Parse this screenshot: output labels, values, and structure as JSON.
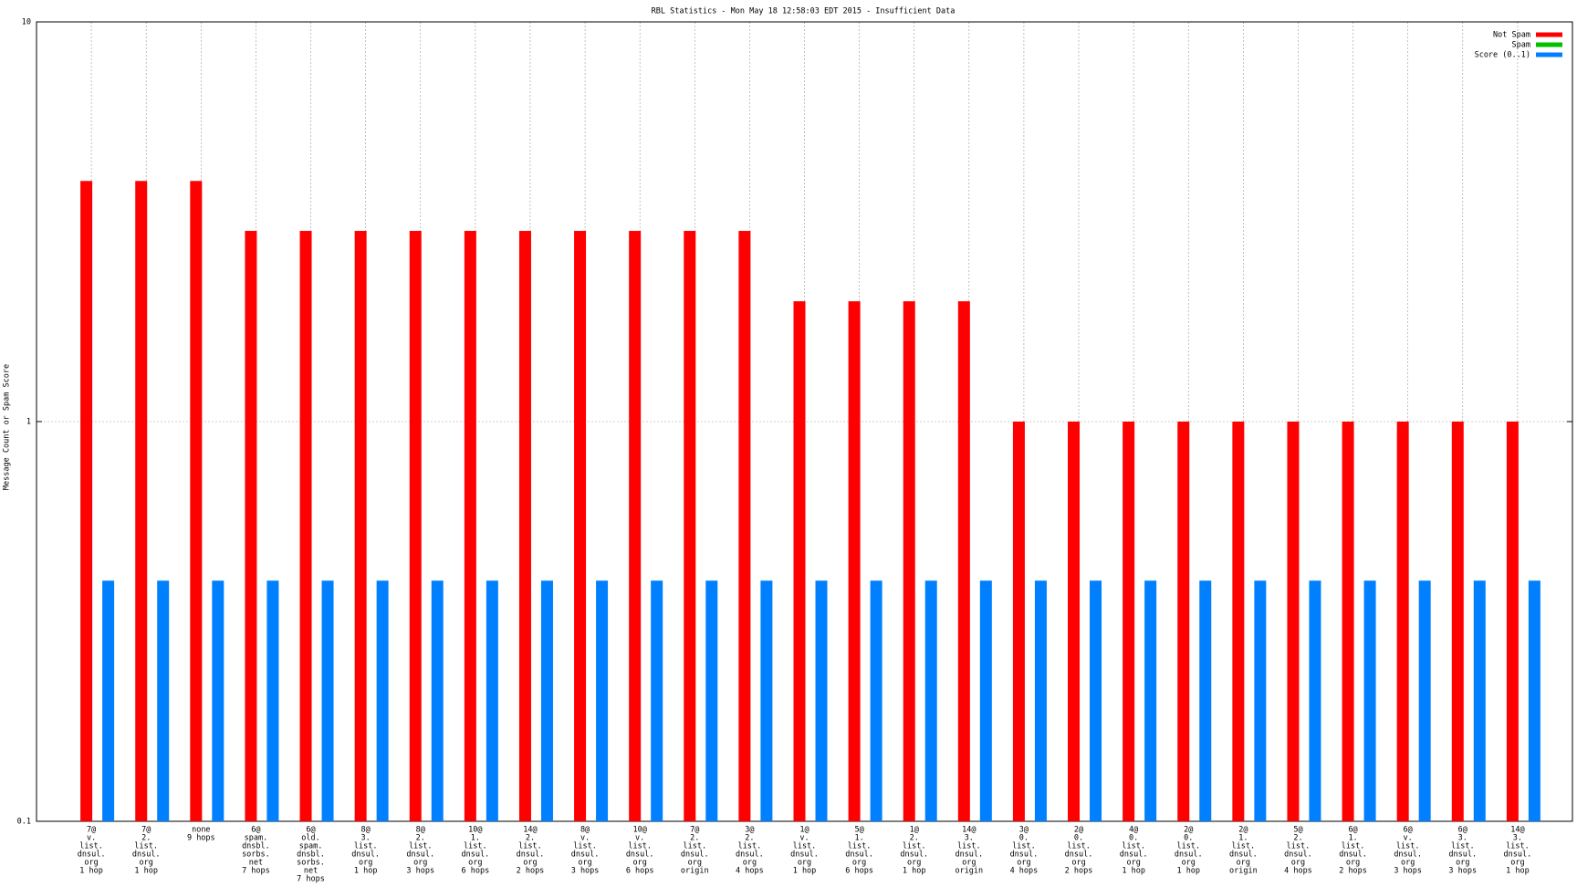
{
  "chart_data": {
    "type": "bar",
    "title": "RBL Statistics - Mon May 18 12:58:03 EDT 2015 - Insufficient Data",
    "y_label": "Message Count or Spam Score",
    "log_scale": true,
    "grid": true,
    "legend": "top-right",
    "ylim": [
      0.1,
      10
    ],
    "yticks": [
      0.1,
      1,
      10
    ],
    "categories": [
      [
        "7@",
        "v.",
        "list.",
        "dnsul.",
        "org",
        "1 hop"
      ],
      [
        "7@",
        "2.",
        "list.",
        "dnsul.",
        "org",
        "1 hop"
      ],
      [
        "none",
        "9 hops"
      ],
      [
        "6@",
        "spam.",
        "dnsbl.",
        "sorbs.",
        "net",
        "7 hops"
      ],
      [
        "6@",
        "old.",
        "spam.",
        "dnsbl.",
        "sorbs.",
        "net",
        "7 hops"
      ],
      [
        "8@",
        "3.",
        "list.",
        "dnsul.",
        "org",
        "1 hop"
      ],
      [
        "8@",
        "2.",
        "list.",
        "dnsul.",
        "org",
        "3 hops"
      ],
      [
        "10@",
        "1.",
        "list.",
        "dnsul.",
        "org",
        "6 hops"
      ],
      [
        "14@",
        "2.",
        "list.",
        "dnsul.",
        "org",
        "2 hops"
      ],
      [
        "8@",
        "v.",
        "list.",
        "dnsul.",
        "org",
        "3 hops"
      ],
      [
        "10@",
        "v.",
        "list.",
        "dnsul.",
        "org",
        "6 hops"
      ],
      [
        "7@",
        "2.",
        "list.",
        "dnsul.",
        "org",
        "origin"
      ],
      [
        "3@",
        "2.",
        "list.",
        "dnsul.",
        "org",
        "4 hops"
      ],
      [
        "1@",
        "v.",
        "list.",
        "dnsul.",
        "org",
        "1 hop"
      ],
      [
        "5@",
        "1.",
        "list.",
        "dnsul.",
        "org",
        "6 hops"
      ],
      [
        "1@",
        "2.",
        "list.",
        "dnsul.",
        "org",
        "1 hop"
      ],
      [
        "14@",
        "3.",
        "list.",
        "dnsul.",
        "org",
        "origin"
      ],
      [
        "3@",
        "0.",
        "list.",
        "dnsul.",
        "org",
        "4 hops"
      ],
      [
        "2@",
        "0.",
        "list.",
        "dnsul.",
        "org",
        "2 hops"
      ],
      [
        "4@",
        "0.",
        "list.",
        "dnsul.",
        "org",
        "1 hop"
      ],
      [
        "2@",
        "0.",
        "list.",
        "dnsul.",
        "org",
        "1 hop"
      ],
      [
        "2@",
        "1.",
        "list.",
        "dnsul.",
        "org",
        "origin"
      ],
      [
        "5@",
        "2.",
        "list.",
        "dnsul.",
        "org",
        "4 hops"
      ],
      [
        "6@",
        "1.",
        "list.",
        "dnsul.",
        "org",
        "2 hops"
      ],
      [
        "6@",
        "v.",
        "list.",
        "dnsul.",
        "org",
        "3 hops"
      ],
      [
        "6@",
        "3.",
        "list.",
        "dnsul.",
        "org",
        "3 hops"
      ],
      [
        "14@",
        "3.",
        "list.",
        "dnsul.",
        "org",
        "1 hop"
      ]
    ],
    "series": [
      {
        "name": "Not Spam",
        "color": "#ff0000",
        "values": [
          4,
          4,
          4,
          3,
          3,
          3,
          3,
          3,
          3,
          3,
          3,
          3,
          3,
          2,
          2,
          2,
          2,
          1,
          1,
          1,
          1,
          1,
          1,
          1,
          1,
          1,
          1
        ]
      },
      {
        "name": "Spam",
        "color": "#00c000",
        "values": [
          null,
          null,
          null,
          null,
          null,
          null,
          null,
          null,
          null,
          null,
          null,
          null,
          null,
          null,
          null,
          null,
          null,
          null,
          null,
          null,
          null,
          null,
          null,
          null,
          null,
          null,
          null
        ]
      },
      {
        "name": "Score (0..1)",
        "color": "#0080ff",
        "values": [
          0.4,
          0.4,
          0.4,
          0.4,
          0.4,
          0.4,
          0.4,
          0.4,
          0.4,
          0.4,
          0.4,
          0.4,
          0.4,
          0.4,
          0.4,
          0.4,
          0.4,
          0.4,
          0.4,
          0.4,
          0.4,
          0.4,
          0.4,
          0.4,
          0.4,
          0.4,
          0.4
        ]
      }
    ]
  }
}
